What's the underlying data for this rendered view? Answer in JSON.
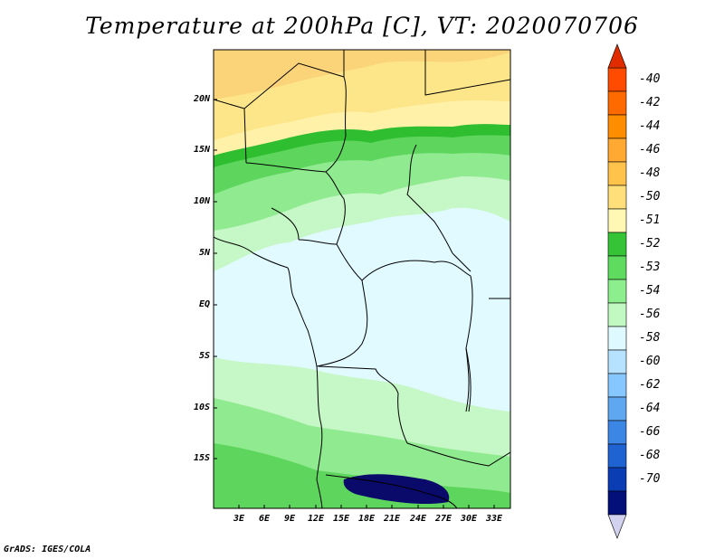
{
  "title": "Temperature at 200hPa [C], VT: 2020070706",
  "credit": "GrADS: IGES/COLA",
  "y_axis_labels": [
    "20N",
    "15N",
    "10N",
    "5N",
    "EQ",
    "5S",
    "10S",
    "15S"
  ],
  "x_axis_labels": [
    "3E",
    "6E",
    "9E",
    "12E",
    "15E",
    "18E",
    "21E",
    "24E",
    "27E",
    "30E",
    "33E"
  ],
  "colorbar": {
    "labels": [
      "-40",
      "-42",
      "-44",
      "-46",
      "-48",
      "-50",
      "-51",
      "-52",
      "-53",
      "-54",
      "-56",
      "-58",
      "-60",
      "-62",
      "-64",
      "-66",
      "-68",
      "-70"
    ],
    "colors": [
      "#ff4b00",
      "#ff6a00",
      "#ff8d00",
      "#ffa832",
      "#ffc24b",
      "#ffdf7a",
      "#fff7b4",
      "#35c435",
      "#5fdb5f",
      "#8cee8c",
      "#c2f8c2",
      "#def9ff",
      "#b6e1ff",
      "#86c7ff",
      "#5fa7f0",
      "#3c86e6",
      "#1e63d1",
      "#0a3cb4",
      "#04107a"
    ],
    "top_arrow_color": "#e12c00",
    "bottom_arrow_color": "#d2d2f0"
  },
  "field_colors": {
    "yellow_light": "#fde68a",
    "yellow": "#fbd47a",
    "yellow_pale": "#fff1a8",
    "green_dark": "#2fbe2f",
    "green": "#5ed65e",
    "green_light": "#90ea90",
    "green_pale": "#c6f7c6",
    "cyan_pale": "#e0faff",
    "navy": "#0a0a6a"
  }
}
